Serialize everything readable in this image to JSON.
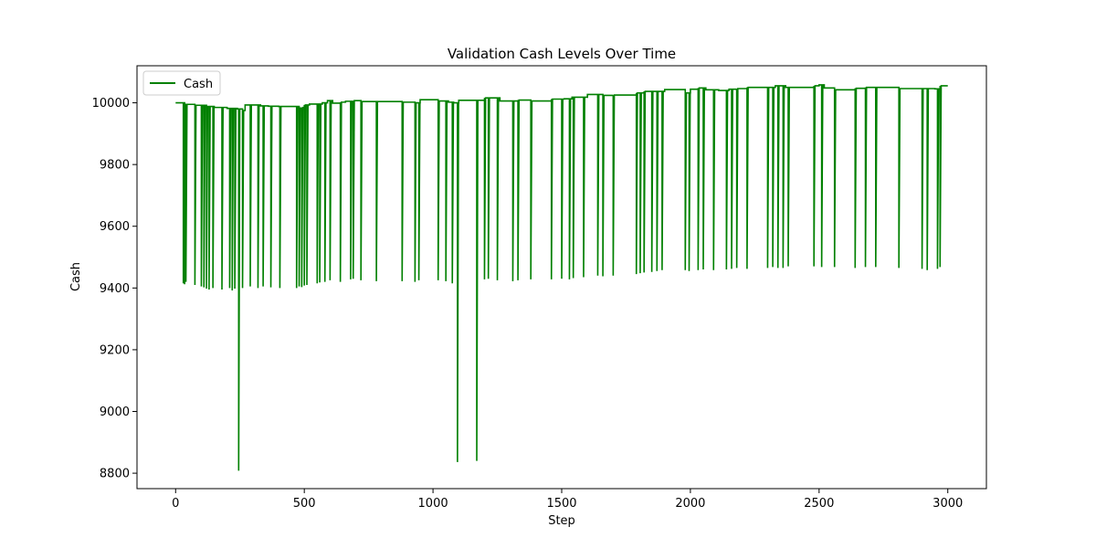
{
  "chart_data": {
    "type": "line",
    "title": "Validation Cash Levels Over Time",
    "xlabel": "Step",
    "ylabel": "Cash",
    "xlim": [
      -150,
      3150
    ],
    "ylim": [
      8750,
      10120
    ],
    "xticks": [
      0,
      500,
      1000,
      1500,
      2000,
      2500,
      3000
    ],
    "yticks": [
      8800,
      9000,
      9200,
      9400,
      9600,
      9800,
      10000
    ],
    "grid": false,
    "legend": {
      "position": "top-left",
      "entries": [
        "Cash"
      ]
    },
    "series": [
      {
        "name": "Cash",
        "color": "#008000",
        "baseline": [
          [
            0,
            10000
          ],
          [
            30,
            10000
          ],
          [
            35,
            9995
          ],
          [
            70,
            9995
          ],
          [
            75,
            9992
          ],
          [
            110,
            9992
          ],
          [
            120,
            9988
          ],
          [
            150,
            9985
          ],
          [
            200,
            9982
          ],
          [
            240,
            9980
          ],
          [
            260,
            9975
          ],
          [
            270,
            9993
          ],
          [
            330,
            9990
          ],
          [
            360,
            9989
          ],
          [
            400,
            9988
          ],
          [
            470,
            9988
          ],
          [
            480,
            9983
          ],
          [
            490,
            9985
          ],
          [
            500,
            9993
          ],
          [
            520,
            9996
          ],
          [
            540,
            9996
          ],
          [
            570,
            10000
          ],
          [
            590,
            10007
          ],
          [
            610,
            9999
          ],
          [
            640,
            10002
          ],
          [
            660,
            10005
          ],
          [
            690,
            10007
          ],
          [
            720,
            10004
          ],
          [
            760,
            10004
          ],
          [
            880,
            10002
          ],
          [
            930,
            10000
          ],
          [
            950,
            10010
          ],
          [
            1020,
            10006
          ],
          [
            1060,
            10002
          ],
          [
            1080,
            10000
          ],
          [
            1100,
            10008
          ],
          [
            1150,
            10008
          ],
          [
            1200,
            10016
          ],
          [
            1260,
            10006
          ],
          [
            1310,
            10006
          ],
          [
            1330,
            10009
          ],
          [
            1380,
            10006
          ],
          [
            1460,
            10012
          ],
          [
            1510,
            10013
          ],
          [
            1540,
            10018
          ],
          [
            1600,
            10027
          ],
          [
            1660,
            10024
          ],
          [
            1700,
            10025
          ],
          [
            1790,
            10032
          ],
          [
            1820,
            10037
          ],
          [
            1870,
            10037
          ],
          [
            1900,
            10043
          ],
          [
            1980,
            10032
          ],
          [
            2000,
            10044
          ],
          [
            2030,
            10048
          ],
          [
            2060,
            10042
          ],
          [
            2110,
            10040
          ],
          [
            2150,
            10044
          ],
          [
            2180,
            10046
          ],
          [
            2220,
            10050
          ],
          [
            2300,
            10050
          ],
          [
            2330,
            10055
          ],
          [
            2370,
            10050
          ],
          [
            2480,
            10055
          ],
          [
            2500,
            10058
          ],
          [
            2520,
            10048
          ],
          [
            2560,
            10042
          ],
          [
            2640,
            10047
          ],
          [
            2680,
            10050
          ],
          [
            2810,
            10046
          ],
          [
            2900,
            10046
          ],
          [
            2950,
            10045
          ],
          [
            2970,
            10055
          ],
          [
            3000,
            10055
          ]
        ],
        "drops": [
          [
            30,
            9415
          ],
          [
            35,
            9412
          ],
          [
            40,
            9420
          ],
          [
            75,
            9410
          ],
          [
            100,
            9405
          ],
          [
            110,
            9402
          ],
          [
            120,
            9398
          ],
          [
            130,
            9395
          ],
          [
            145,
            9400
          ],
          [
            180,
            9395
          ],
          [
            210,
            9400
          ],
          [
            220,
            9392
          ],
          [
            230,
            9398
          ],
          [
            245,
            8808
          ],
          [
            260,
            9400
          ],
          [
            290,
            9405
          ],
          [
            320,
            9400
          ],
          [
            340,
            9405
          ],
          [
            370,
            9402
          ],
          [
            405,
            9400
          ],
          [
            470,
            9400
          ],
          [
            480,
            9405
          ],
          [
            490,
            9403
          ],
          [
            500,
            9408
          ],
          [
            510,
            9410
          ],
          [
            550,
            9415
          ],
          [
            560,
            9418
          ],
          [
            580,
            9420
          ],
          [
            600,
            9425
          ],
          [
            640,
            9420
          ],
          [
            680,
            9428
          ],
          [
            690,
            9430
          ],
          [
            720,
            9425
          ],
          [
            780,
            9422
          ],
          [
            880,
            9422
          ],
          [
            930,
            9420
          ],
          [
            945,
            9425
          ],
          [
            1020,
            9425
          ],
          [
            1050,
            9422
          ],
          [
            1075,
            9415
          ],
          [
            1095,
            8836
          ],
          [
            1170,
            8840
          ],
          [
            1200,
            9428
          ],
          [
            1215,
            9430
          ],
          [
            1250,
            9425
          ],
          [
            1310,
            9422
          ],
          [
            1330,
            9425
          ],
          [
            1380,
            9428
          ],
          [
            1460,
            9428
          ],
          [
            1500,
            9430
          ],
          [
            1530,
            9428
          ],
          [
            1545,
            9432
          ],
          [
            1585,
            9435
          ],
          [
            1640,
            9440
          ],
          [
            1660,
            9438
          ],
          [
            1700,
            9440
          ],
          [
            1790,
            9445
          ],
          [
            1805,
            9448
          ],
          [
            1820,
            9450
          ],
          [
            1850,
            9452
          ],
          [
            1870,
            9455
          ],
          [
            1890,
            9458
          ],
          [
            1980,
            9458
          ],
          [
            1995,
            9455
          ],
          [
            2030,
            9458
          ],
          [
            2050,
            9460
          ],
          [
            2090,
            9458
          ],
          [
            2140,
            9460
          ],
          [
            2160,
            9462
          ],
          [
            2180,
            9465
          ],
          [
            2220,
            9462
          ],
          [
            2300,
            9465
          ],
          [
            2320,
            9468
          ],
          [
            2340,
            9465
          ],
          [
            2360,
            9465
          ],
          [
            2380,
            9470
          ],
          [
            2480,
            9470
          ],
          [
            2510,
            9468
          ],
          [
            2560,
            9468
          ],
          [
            2640,
            9465
          ],
          [
            2680,
            9468
          ],
          [
            2720,
            9468
          ],
          [
            2810,
            9465
          ],
          [
            2900,
            9462
          ],
          [
            2920,
            9458
          ],
          [
            2960,
            9462
          ],
          [
            2970,
            9468
          ]
        ]
      }
    ]
  }
}
